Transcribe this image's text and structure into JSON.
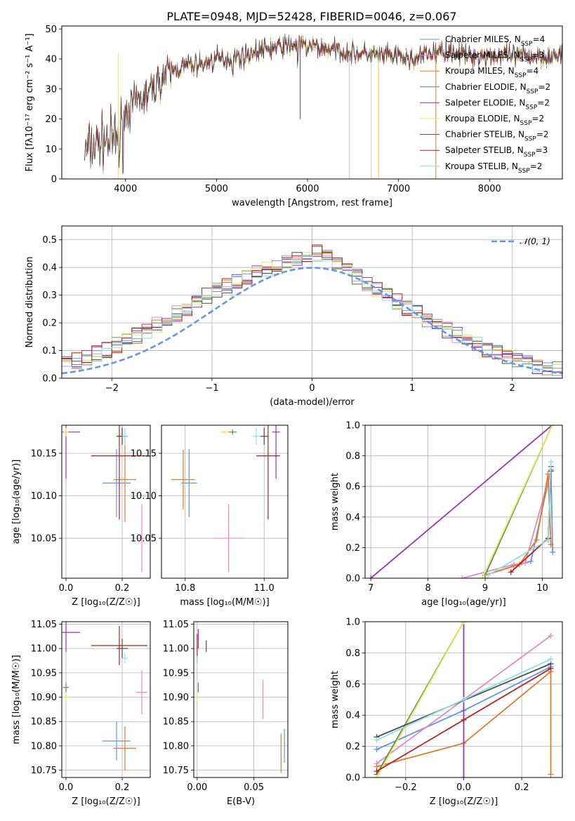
{
  "figure_title": "PLATE=0948, MJD=52428, FIBERID=0046, z=0.067",
  "chart_data": [
    {
      "id": "spectrum",
      "type": "line",
      "xlabel": "wavelength [Angstrom, rest frame]",
      "ylabel": "Flux [fλ10⁻¹⁷ erg cm⁻² s⁻¹ A⁻¹]",
      "xlim": [
        3300,
        8800
      ],
      "ylim": [
        0,
        51
      ],
      "xticks": [
        4000,
        5000,
        6000,
        7000,
        8000
      ],
      "yticks": [
        0,
        10,
        20,
        30,
        40,
        50
      ],
      "grid": false,
      "legend_position": "top-right",
      "continuum": [
        [
          3550,
          9
        ],
        [
          3700,
          12
        ],
        [
          3800,
          13
        ],
        [
          3900,
          13
        ],
        [
          3950,
          18
        ],
        [
          4000,
          22
        ],
        [
          4100,
          25
        ],
        [
          4200,
          27
        ],
        [
          4300,
          30
        ],
        [
          4400,
          34
        ],
        [
          4500,
          36
        ],
        [
          4600,
          37
        ],
        [
          4700,
          38
        ],
        [
          4800,
          38.5
        ],
        [
          4900,
          39
        ],
        [
          5000,
          40
        ],
        [
          5100,
          40
        ],
        [
          5200,
          40.5
        ],
        [
          5300,
          41
        ],
        [
          5400,
          42
        ],
        [
          5500,
          43
        ],
        [
          5600,
          43.5
        ],
        [
          5700,
          44
        ],
        [
          5800,
          44.5
        ],
        [
          5900,
          44.5
        ],
        [
          6000,
          44
        ],
        [
          6100,
          44
        ],
        [
          6200,
          43.5
        ],
        [
          6300,
          43
        ],
        [
          6400,
          42.5
        ],
        [
          6500,
          42
        ],
        [
          6600,
          41.5
        ],
        [
          6700,
          41.5
        ],
        [
          6800,
          41
        ],
        [
          6900,
          41
        ],
        [
          7000,
          41
        ],
        [
          7100,
          40
        ],
        [
          7200,
          40
        ],
        [
          7300,
          41.5
        ],
        [
          7400,
          42
        ],
        [
          7500,
          43
        ],
        [
          7600,
          42.5
        ],
        [
          7700,
          41.5
        ],
        [
          7800,
          41
        ],
        [
          7900,
          41
        ],
        [
          8000,
          41
        ],
        [
          8100,
          41
        ],
        [
          8200,
          41
        ],
        [
          8300,
          41
        ],
        [
          8400,
          41
        ],
        [
          8500,
          41
        ],
        [
          8600,
          41
        ],
        [
          8800,
          41
        ]
      ],
      "series": [
        {
          "name": "Chabrier MILES, N_SSP=4",
          "color": "#6495ed"
        },
        {
          "name": "Salpeter MILES, N_SSP=3",
          "color": "#e589c3"
        },
        {
          "name": "Kroupa MILES, N_SSP=4",
          "color": "#e07b27"
        },
        {
          "name": "Chabrier ELODIE, N_SSP=2",
          "color": "#5c8a5c"
        },
        {
          "name": "Salpeter ELODIE, N_SSP=2",
          "color": "#9b33b5"
        },
        {
          "name": "Kroupa ELODIE, N_SSP=2",
          "color": "#e8e85a"
        },
        {
          "name": "Chabrier STELIB, N_SSP=2",
          "color": "#4a4a4a"
        },
        {
          "name": "Salpeter STELIB, N_SSP=3",
          "color": "#b22222"
        },
        {
          "name": "Kroupa STELIB, N_SSP=2",
          "color": "#8ee0e6"
        }
      ],
      "drop_lines": [
        [
          5920,
          20
        ],
        [
          6460,
          0
        ],
        [
          6700,
          0
        ],
        [
          6780,
          0
        ],
        [
          7410,
          0
        ],
        [
          3920,
          0
        ]
      ]
    },
    {
      "id": "residuals",
      "type": "line",
      "xlabel": "(data-model)/error",
      "ylabel": "Normed distribution",
      "xlim": [
        -2.5,
        2.5
      ],
      "ylim": [
        0,
        0.55
      ],
      "xticks": [
        -2,
        -1,
        0,
        1,
        2
      ],
      "yticks": [
        0.0,
        0.1,
        0.2,
        0.3,
        0.4,
        0.5
      ],
      "grid": true,
      "legend_position": "top-right",
      "gaussian_label": "𝒩(0, 1)",
      "gaussian_color": "#6495ed"
    },
    {
      "id": "age-vs-Z",
      "type": "scatter",
      "xlabel": "Z [log₁₀(Z/Z☉)]",
      "ylabel": "age  [log₁₀(age/yr)]",
      "xlim": [
        -0.015,
        0.3
      ],
      "ylim": [
        10.003,
        10.183
      ],
      "xticks": [
        0.0,
        0.2
      ],
      "yticks": [
        10.05,
        10.1,
        10.15
      ],
      "grid": true,
      "points": [
        {
          "color": "#6495ed",
          "x": 0.18,
          "y": 10.115,
          "xerr": 0.05,
          "yerr": 0.04
        },
        {
          "color": "#e589c3",
          "x": 0.27,
          "y": 10.05,
          "xerr": 0.02,
          "yerr": 0.04
        },
        {
          "color": "#e07b27",
          "x": 0.21,
          "y": 10.119,
          "xerr": 0.04,
          "yerr": 0.05
        },
        {
          "color": "#5c8a5c",
          "x": 0.2,
          "y": 10.17,
          "xerr": 0.02,
          "yerr": 0.01
        },
        {
          "color": "#9b33b5",
          "x": 0.0,
          "y": 10.175,
          "xerr": 0.05,
          "yerr": 0.055
        },
        {
          "color": "#e8e85a",
          "x": 0.0,
          "y": 10.175,
          "xerr": 0.01,
          "yerr": 0.005
        },
        {
          "color": "#4a4a4a",
          "x": 0.2,
          "y": 10.17,
          "xerr": 0.02,
          "yerr": 0.01
        },
        {
          "color": "#b22222",
          "x": 0.19,
          "y": 10.147,
          "xerr": 0.1,
          "yerr": 0.075
        },
        {
          "color": "#8ee0e6",
          "x": 0.21,
          "y": 10.17,
          "xerr": 0.01,
          "yerr": 0.01
        }
      ]
    },
    {
      "id": "age-vs-mass",
      "type": "scatter",
      "xlabel": "mass [log₁₀(M/M☉)]",
      "ylabel": "",
      "xlim": [
        10.74,
        11.06
      ],
      "ylim": [
        10.003,
        10.183
      ],
      "xticks": [
        10.8,
        11.0
      ],
      "yticks": [
        10.05,
        10.1,
        10.15
      ],
      "grid": true,
      "points": [
        {
          "color": "#6495ed",
          "x": 10.81,
          "y": 10.115,
          "xerr": 0.02,
          "yerr": 0.04
        },
        {
          "color": "#e589c3",
          "x": 10.91,
          "y": 10.05,
          "xerr": 0.04,
          "yerr": 0.04
        },
        {
          "color": "#e07b27",
          "x": 10.795,
          "y": 10.119,
          "xerr": 0.03,
          "yerr": 0.035
        },
        {
          "color": "#5c8a5c",
          "x": 10.92,
          "y": 10.175,
          "xerr": 0.01,
          "yerr": 0.003
        },
        {
          "color": "#9b33b5",
          "x": 11.03,
          "y": 10.175,
          "xerr": 0.01,
          "yerr": 0.055
        },
        {
          "color": "#e8e85a",
          "x": 10.9,
          "y": 10.175,
          "xerr": 0.01,
          "yerr": 0.002
        },
        {
          "color": "#4a4a4a",
          "x": 11.0,
          "y": 10.17,
          "xerr": 0.01,
          "yerr": 0.01
        },
        {
          "color": "#b22222",
          "x": 11.01,
          "y": 10.147,
          "xerr": 0.03,
          "yerr": 0.075
        },
        {
          "color": "#8ee0e6",
          "x": 10.98,
          "y": 10.17,
          "xerr": 0.01,
          "yerr": 0.01
        }
      ]
    },
    {
      "id": "massweight-vs-age",
      "type": "line",
      "xlabel": "age  [log₁₀(age/yr)]",
      "ylabel": "mass weight",
      "xlim": [
        6.9,
        10.35
      ],
      "ylim": [
        0,
        1
      ],
      "xticks": [
        7,
        8,
        9,
        10
      ],
      "yticks": [
        0.0,
        0.2,
        0.4,
        0.6,
        0.8,
        1.0
      ],
      "grid": true,
      "series": [
        {
          "name": "Chabrier MILES",
          "color": "#6495ed",
          "x": [
            9.0,
            9.5,
            9.8,
            10.15,
            10.18
          ],
          "y": [
            0.02,
            0.08,
            0.11,
            0.71,
            0.17
          ]
        },
        {
          "name": "Salpeter MILES",
          "color": "#e589c3",
          "x": [
            8.6,
            9.5,
            9.7,
            10.15
          ],
          "y": [
            0.0,
            0.09,
            0.1,
            0.7
          ]
        },
        {
          "name": "Kroupa MILES",
          "color": "#e07b27",
          "x": [
            9.0,
            9.6,
            9.9,
            10.1,
            10.15
          ],
          "y": [
            0.02,
            0.09,
            0.25,
            0.68,
            0.22
          ]
        },
        {
          "name": "Chabrier ELODIE",
          "color": "#5c8a5c",
          "x": [
            9.0,
            10.17
          ],
          "y": [
            0.02,
            1.0
          ]
        },
        {
          "name": "Salpeter ELODIE",
          "color": "#9b33b5",
          "x": [
            7.0,
            10.17
          ],
          "y": [
            0.0,
            1.0
          ]
        },
        {
          "name": "Kroupa ELODIE",
          "color": "#e8e85a",
          "x": [
            8.95,
            10.17
          ],
          "y": [
            0.0,
            1.0
          ]
        },
        {
          "name": "Chabrier STELIB",
          "color": "#4a4a4a",
          "x": [
            10.1,
            10.15
          ],
          "y": [
            0.25,
            0.73
          ]
        },
        {
          "name": "Salpeter STELIB",
          "color": "#b22222",
          "x": [
            9.45,
            10.1,
            10.15
          ],
          "y": [
            0.04,
            0.26,
            0.7
          ]
        },
        {
          "name": "Kroupa STELIB",
          "color": "#8ee0e6",
          "x": [
            9.05,
            10.1,
            10.15
          ],
          "y": [
            0.02,
            0.25,
            0.76
          ]
        }
      ]
    },
    {
      "id": "mass-vs-Z",
      "type": "scatter",
      "xlabel": "Z [log₁₀(Z/Z☉)]",
      "ylabel": "mass [log₁₀(M/M☉)]",
      "xlim": [
        -0.015,
        0.3
      ],
      "ylim": [
        10.735,
        11.055
      ],
      "xticks": [
        0.0,
        0.2
      ],
      "yticks": [
        10.75,
        10.8,
        10.85,
        10.9,
        10.95,
        11.0,
        11.05
      ],
      "grid": true,
      "points": [
        {
          "color": "#6495ed",
          "x": 0.18,
          "y": 10.81,
          "xerr": 0.05,
          "yerr": 0.04
        },
        {
          "color": "#e589c3",
          "x": 0.27,
          "y": 10.91,
          "xerr": 0.02,
          "yerr": 0.045
        },
        {
          "color": "#e07b27",
          "x": 0.21,
          "y": 10.795,
          "xerr": 0.04,
          "yerr": 0.045
        },
        {
          "color": "#5c8a5c",
          "x": 0.0,
          "y": 10.92,
          "xerr": 0.01,
          "yerr": 0.01
        },
        {
          "color": "#9b33b5",
          "x": 0.0,
          "y": 11.033,
          "xerr": 0.05,
          "yerr": 0.04
        },
        {
          "color": "#e8e85a",
          "x": 0.0,
          "y": 10.9,
          "xerr": 0.01,
          "yerr": 0.01
        },
        {
          "color": "#4a4a4a",
          "x": 0.2,
          "y": 11.0,
          "xerr": 0.02,
          "yerr": 0.02
        },
        {
          "color": "#b22222",
          "x": 0.19,
          "y": 11.006,
          "xerr": 0.1,
          "yerr": 0.04
        },
        {
          "color": "#8ee0e6",
          "x": 0.21,
          "y": 10.98,
          "xerr": 0.01,
          "yerr": 0.01
        }
      ]
    },
    {
      "id": "mass-vs-EBV",
      "type": "scatter",
      "xlabel": "E(B-V)",
      "ylabel": "",
      "xlim": [
        -0.003,
        0.08
      ],
      "ylim": [
        10.735,
        11.055
      ],
      "xticks": [
        0.0,
        0.05
      ],
      "yticks": [
        10.75,
        10.8,
        10.85,
        10.9,
        10.95,
        11.0,
        11.05
      ],
      "grid": true,
      "points": [
        {
          "color": "#6495ed",
          "x": 0.077,
          "y": 10.8,
          "xerr": 0.0,
          "yerr": 0.035
        },
        {
          "color": "#e589c3",
          "x": 0.058,
          "y": 10.895,
          "xerr": 0.0,
          "yerr": 0.04
        },
        {
          "color": "#e07b27",
          "x": 0.074,
          "y": 10.785,
          "xerr": 0.0,
          "yerr": 0.04
        },
        {
          "color": "#5c8a5c",
          "x": 0.001,
          "y": 10.92,
          "xerr": 0.0,
          "yerr": 0.01
        },
        {
          "color": "#9b33b5",
          "x": 0.001,
          "y": 11.02,
          "xerr": 0.0,
          "yerr": 0.02
        },
        {
          "color": "#e8e85a",
          "x": 0.0,
          "y": 10.9,
          "xerr": 0.0,
          "yerr": 0.01
        },
        {
          "color": "#4a4a4a",
          "x": 0.008,
          "y": 11.005,
          "xerr": 0.0,
          "yerr": 0.012
        },
        {
          "color": "#b22222",
          "x": 0.0,
          "y": 11.0,
          "xerr": 0.0,
          "yerr": 0.03
        },
        {
          "color": "#8ee0e6",
          "x": 0.0,
          "y": 10.975,
          "xerr": 0.0,
          "yerr": 0.01
        }
      ]
    },
    {
      "id": "massweight-vs-Z",
      "type": "line",
      "xlabel": "Z [log₁₀(Z/Z☉)]",
      "ylabel": "mass weight",
      "xlim": [
        -0.34,
        0.34
      ],
      "ylim": [
        0,
        1
      ],
      "xticks": [
        -0.2,
        0.0,
        0.2
      ],
      "yticks": [
        0.0,
        0.2,
        0.4,
        0.6,
        0.8,
        1.0
      ],
      "grid": true,
      "series": [
        {
          "name": "Chabrier MILES",
          "color": "#6495ed",
          "x": [
            -0.3,
            0.0,
            0.3
          ],
          "y": [
            0.18,
            0.43,
            0.71
          ]
        },
        {
          "name": "Salpeter MILES",
          "color": "#e589c3",
          "x": [
            -0.3,
            0.3
          ],
          "y": [
            0.09,
            0.91
          ]
        },
        {
          "name": "Kroupa MILES",
          "color": "#e07b27",
          "x": [
            -0.3,
            0.0,
            0.3,
            0.3
          ],
          "y": [
            0.07,
            0.22,
            0.68,
            0.02
          ]
        },
        {
          "name": "Chabrier ELODIE",
          "color": "#5c8a5c",
          "x": [
            -0.3,
            0.0
          ],
          "y": [
            0.02,
            1.0
          ]
        },
        {
          "name": "Salpeter ELODIE",
          "color": "#9b33b5",
          "x": [
            0.0,
            0.0
          ],
          "y": [
            0.0,
            1.0
          ]
        },
        {
          "name": "Kroupa ELODIE",
          "color": "#e8e85a",
          "x": [
            -0.3,
            0.0
          ],
          "y": [
            0.0,
            1.0
          ]
        },
        {
          "name": "Chabrier STELIB",
          "color": "#4a4a4a",
          "x": [
            -0.3,
            0.3
          ],
          "y": [
            0.26,
            0.73
          ]
        },
        {
          "name": "Salpeter STELIB",
          "color": "#b22222",
          "x": [
            -0.3,
            0.0,
            0.3
          ],
          "y": [
            0.04,
            0.37,
            0.7
          ]
        },
        {
          "name": "Kroupa STELIB",
          "color": "#8ee0e6",
          "x": [
            -0.3,
            0.0,
            0.3
          ],
          "y": [
            0.24,
            0.5,
            0.76
          ]
        }
      ]
    }
  ]
}
